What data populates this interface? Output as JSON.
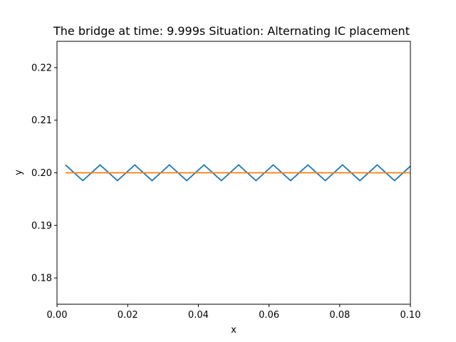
{
  "chart_data": {
    "type": "line",
    "title": "The bridge at time: 9.999s Situation: Alternating IC placement",
    "xlabel": "x",
    "ylabel": "y",
    "xlim": [
      0.0,
      0.1
    ],
    "ylim": [
      0.175,
      0.225
    ],
    "xticks": [
      "0.00",
      "0.02",
      "0.04",
      "0.06",
      "0.08",
      "0.10"
    ],
    "yticks": [
      "0.18",
      "0.19",
      "0.20",
      "0.21",
      "0.22"
    ],
    "grid": false,
    "series": [
      {
        "color": "#1f77b4",
        "x": [
          0.0024,
          0.0073,
          0.0122,
          0.0171,
          0.022,
          0.0269,
          0.0318,
          0.0367,
          0.0416,
          0.0465,
          0.0514,
          0.0563,
          0.0612,
          0.0661,
          0.071,
          0.0759,
          0.0808,
          0.0857,
          0.0906,
          0.0955,
          0.1004
        ],
        "y": [
          0.2015,
          0.1985,
          0.2015,
          0.1985,
          0.2015,
          0.1985,
          0.2015,
          0.1985,
          0.2015,
          0.1985,
          0.2015,
          0.1985,
          0.2015,
          0.1985,
          0.2015,
          0.1985,
          0.2015,
          0.1985,
          0.2015,
          0.1985,
          0.2015
        ]
      },
      {
        "color": "#ff7f0e",
        "x": [
          0.0024,
          0.1004
        ],
        "y": [
          0.2,
          0.2
        ]
      }
    ]
  }
}
